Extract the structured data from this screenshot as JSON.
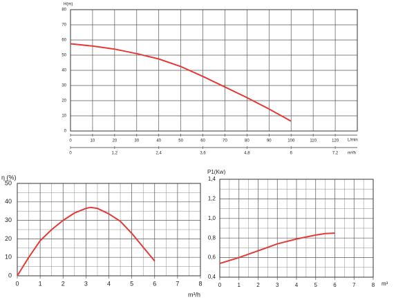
{
  "chart_data": [
    {
      "type": "line",
      "y_label": "H(m)",
      "x_label": "L/min",
      "x2_label": "m³/h",
      "x": [
        0,
        10,
        20,
        30,
        40,
        50,
        60,
        70,
        80,
        90,
        100
      ],
      "values": [
        57.5,
        56,
        54,
        51,
        47.5,
        42.5,
        36,
        29,
        22,
        14.5,
        6.5
      ],
      "color": "#e53935",
      "xlim": [
        0,
        130
      ],
      "xticks": [
        0,
        10,
        20,
        30,
        40,
        50,
        60,
        70,
        80,
        90,
        100,
        110,
        120
      ],
      "ylim": [
        0,
        80
      ],
      "yticks": [
        0,
        10,
        20,
        30,
        40,
        50,
        60,
        70,
        80
      ],
      "x2lim": [
        0,
        7.8
      ],
      "x2ticks": [
        0,
        {
          "value": 1.2,
          "label": "1,2"
        },
        {
          "value": 2.4,
          "label": "2,4"
        },
        {
          "value": 3.6,
          "label": "3,6"
        },
        {
          "value": 4.8,
          "label": "4,8"
        },
        6,
        {
          "value": 7.2,
          "label": "7,2"
        }
      ],
      "grid": true
    },
    {
      "type": "line",
      "y_label": "η (%)",
      "x_label": "m³/h",
      "x": [
        0,
        0.5,
        1,
        1.5,
        2,
        2.5,
        3,
        3.2,
        3.5,
        4,
        4.5,
        5,
        5.5,
        6
      ],
      "values": [
        0,
        10,
        19,
        25,
        30,
        34,
        36.5,
        37,
        36.5,
        33.5,
        29.5,
        23,
        15.5,
        8
      ],
      "color": "#e53935",
      "xlim": [
        0,
        8
      ],
      "xticks": [
        0,
        1,
        2,
        3,
        4,
        5,
        6,
        7,
        8
      ],
      "ylim": [
        0,
        50
      ],
      "yticks": [
        0,
        10,
        20,
        30,
        40,
        50
      ],
      "grid": true,
      "minor_grid": true
    },
    {
      "type": "line",
      "y_label": "P1(Kw)",
      "x_label": "m³",
      "x": [
        0,
        1,
        2,
        3,
        4,
        5,
        5.5,
        6
      ],
      "values": [
        0.54,
        0.6,
        0.67,
        0.74,
        0.79,
        0.83,
        0.845,
        0.85
      ],
      "color": "#e53935",
      "xlim": [
        0,
        8
      ],
      "xticks": [
        0,
        1,
        2,
        3,
        4,
        5,
        6,
        7,
        8
      ],
      "ylim": [
        0.4,
        1.4
      ],
      "yticks": [
        {
          "value": 0.4,
          "label": "0,4"
        },
        {
          "value": 0.6,
          "label": "0,6"
        },
        {
          "value": 0.8,
          "label": "0,8"
        },
        {
          "value": 1.0,
          "label": "1,0"
        },
        {
          "value": 1.2,
          "label": "1,2"
        },
        {
          "value": 1.4,
          "label": "1,4"
        }
      ],
      "grid": true,
      "minor_grid": true
    }
  ]
}
